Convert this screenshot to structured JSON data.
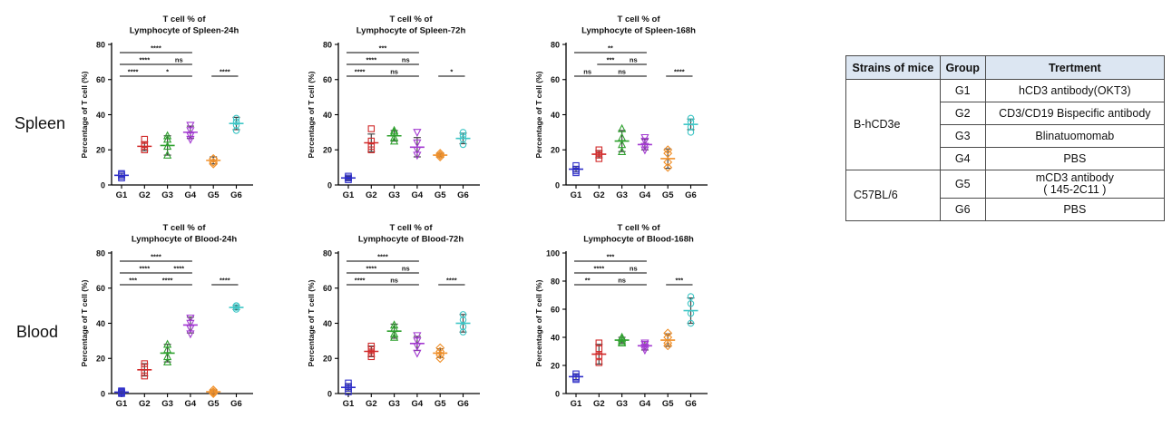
{
  "row_labels": {
    "spleen": "Spleen",
    "blood": "Blood"
  },
  "legend_table": {
    "headers": [
      "Strains of mice",
      "Group",
      "Trertment"
    ],
    "strains": [
      {
        "name": "B-hCD3e",
        "groups": [
          {
            "group": "G1",
            "treatment": "hCD3 antibody(OKT3)"
          },
          {
            "group": "G2",
            "treatment": "CD3/CD19 Bispecific antibody"
          },
          {
            "group": "G3",
            "treatment": "Blinatuomomab"
          },
          {
            "group": "G4",
            "treatment": "PBS"
          }
        ]
      },
      {
        "name": "C57BL/6",
        "groups": [
          {
            "group": "G5",
            "treatment": "mCD3 antibody",
            "treatment_line2": "( 145-2C11 )"
          },
          {
            "group": "G6",
            "treatment": "PBS"
          }
        ]
      }
    ]
  },
  "colors": {
    "G1": "#2d2dc8",
    "G2": "#d12a2a",
    "G3": "#2ea12e",
    "G4": "#a33ad1",
    "G5": "#f0902a",
    "G6": "#3ec6c6"
  },
  "chart_data": [
    {
      "type": "scatter",
      "title": [
        "T cell % of",
        "Lymphocyte of Spleen-24h"
      ],
      "ylabel": "Percentage of T cell (%)",
      "categories": [
        "G1",
        "G2",
        "G3",
        "G4",
        "G5",
        "G6"
      ],
      "ylim": [
        0,
        80
      ],
      "yticks": [
        0,
        20,
        40,
        60,
        80
      ],
      "markers": [
        "square",
        "square",
        "triangle",
        "triangle-down",
        "diamond",
        "circle"
      ],
      "points": [
        [
          4,
          5,
          6,
          6.5
        ],
        [
          20,
          22,
          23,
          26
        ],
        [
          17,
          22,
          26,
          28
        ],
        [
          26,
          28,
          31,
          34
        ],
        [
          12,
          13,
          15,
          15
        ],
        [
          31,
          34,
          36,
          38
        ]
      ],
      "mean": [
        5.5,
        22,
        22.5,
        30,
        14,
        35
      ],
      "sd": [
        1.2,
        2.5,
        5.5,
        3.5,
        2,
        3.5
      ],
      "significance": [
        {
          "from": 1,
          "to": 4,
          "label": "****"
        },
        {
          "from": 1,
          "to": 3,
          "label": "****"
        },
        {
          "from": 3,
          "to": 4,
          "label": "ns"
        },
        {
          "from": 1,
          "to": 2,
          "label": "****"
        },
        {
          "from": 2,
          "to": 4,
          "label": "*"
        },
        {
          "from": 5,
          "to": 6,
          "label": "****"
        }
      ]
    },
    {
      "type": "scatter",
      "title": [
        "T cell % of",
        "Lymphocyte of Spleen-72h"
      ],
      "ylabel": "Percentage of T cell (%)",
      "categories": [
        "G1",
        "G2",
        "G3",
        "G4",
        "G5",
        "G6"
      ],
      "ylim": [
        0,
        80
      ],
      "yticks": [
        0,
        20,
        40,
        60,
        80
      ],
      "markers": [
        "square",
        "square",
        "triangle",
        "triangle-down",
        "diamond",
        "circle"
      ],
      "points": [
        [
          3,
          4,
          4,
          5
        ],
        [
          20,
          22,
          25,
          32
        ],
        [
          25,
          27,
          30,
          31
        ],
        [
          17,
          20,
          24,
          30
        ],
        [
          16,
          17,
          17,
          18
        ],
        [
          23,
          26,
          28,
          30
        ]
      ],
      "mean": [
        4,
        24,
        28,
        21.5,
        17,
        26.5
      ],
      "sd": [
        1,
        5,
        3,
        5.5,
        1,
        3
      ],
      "significance": [
        {
          "from": 1,
          "to": 4,
          "label": "***"
        },
        {
          "from": 1,
          "to": 3,
          "label": "****"
        },
        {
          "from": 3,
          "to": 4,
          "label": "ns"
        },
        {
          "from": 1,
          "to": 2,
          "label": "****"
        },
        {
          "from": 2,
          "to": 4,
          "label": "ns"
        },
        {
          "from": 5,
          "to": 6,
          "label": "*"
        }
      ]
    },
    {
      "type": "scatter",
      "title": [
        "T cell % of",
        "Lymphocyte of Spleen-168h"
      ],
      "ylabel": "Percentage of T cell (%)",
      "categories": [
        "G1",
        "G2",
        "G3",
        "G4",
        "G5",
        "G6"
      ],
      "ylim": [
        0,
        80
      ],
      "yticks": [
        0,
        20,
        40,
        60,
        80
      ],
      "markers": [
        "square",
        "square",
        "triangle",
        "triangle-down",
        "diamond",
        "circle"
      ],
      "points": [
        [
          7,
          8,
          9,
          11
        ],
        [
          15,
          17,
          18,
          20
        ],
        [
          19,
          23,
          27,
          32
        ],
        [
          20,
          22,
          25,
          27
        ],
        [
          10,
          13,
          18,
          20
        ],
        [
          30,
          33,
          36,
          38
        ]
      ],
      "mean": [
        9,
        17.5,
        25,
        23,
        15,
        34.5
      ],
      "sd": [
        1.5,
        2,
        6,
        3,
        5.5,
        3
      ],
      "significance": [
        {
          "from": 1,
          "to": 4,
          "label": "**"
        },
        {
          "from": 2,
          "to": 3,
          "label": "***"
        },
        {
          "from": 3,
          "to": 4,
          "label": "ns"
        },
        {
          "from": 1,
          "to": 2,
          "label": "ns"
        },
        {
          "from": 2,
          "to": 4,
          "label": "ns"
        },
        {
          "from": 5,
          "to": 6,
          "label": "****"
        }
      ]
    },
    {
      "type": "scatter",
      "title": [
        "T cell % of",
        "Lymphocyte of Blood-24h"
      ],
      "ylabel": "Percentage of T cell (%)",
      "categories": [
        "G1",
        "G2",
        "G3",
        "G4",
        "G5",
        "G6"
      ],
      "ylim": [
        0,
        80
      ],
      "yticks": [
        0,
        20,
        40,
        60,
        80
      ],
      "markers": [
        "square",
        "square",
        "triangle",
        "triangle-down",
        "diamond",
        "circle"
      ],
      "points": [
        [
          0,
          0.5,
          1,
          1.5
        ],
        [
          10,
          12,
          15,
          17
        ],
        [
          18,
          21,
          25,
          28
        ],
        [
          34,
          37,
          40,
          43
        ],
        [
          0,
          0.5,
          1,
          2
        ],
        [
          48,
          49,
          50,
          50
        ]
      ],
      "mean": [
        0.8,
        13.5,
        23,
        39,
        1,
        49
      ],
      "sd": [
        0.6,
        3.5,
        5,
        4.5,
        1,
        1.2
      ],
      "significance": [
        {
          "from": 1,
          "to": 4,
          "label": "****"
        },
        {
          "from": 1,
          "to": 3,
          "label": "****"
        },
        {
          "from": 3,
          "to": 4,
          "label": "****"
        },
        {
          "from": 1,
          "to": 2,
          "label": "***"
        },
        {
          "from": 2,
          "to": 4,
          "label": "****"
        },
        {
          "from": 5,
          "to": 6,
          "label": "****"
        }
      ]
    },
    {
      "type": "scatter",
      "title": [
        "T cell % of",
        "Lymphocyte of Blood-72h"
      ],
      "ylabel": "Percentage of T cell (%)",
      "categories": [
        "G1",
        "G2",
        "G3",
        "G4",
        "G5",
        "G6"
      ],
      "ylim": [
        0,
        80
      ],
      "yticks": [
        0,
        20,
        40,
        60,
        80
      ],
      "markers": [
        "square",
        "square",
        "triangle",
        "triangle-down",
        "diamond",
        "circle"
      ],
      "points": [
        [
          1,
          3,
          4,
          6
        ],
        [
          21,
          23,
          25,
          27
        ],
        [
          32,
          34,
          37,
          39
        ],
        [
          23,
          27,
          30,
          33
        ],
        [
          20,
          22,
          24,
          26
        ],
        [
          35,
          38,
          42,
          45
        ]
      ],
      "mean": [
        3.5,
        24,
        35.5,
        28.5,
        23,
        40
      ],
      "sd": [
        2,
        3,
        4,
        4,
        2.5,
        5
      ],
      "significance": [
        {
          "from": 1,
          "to": 4,
          "label": "****"
        },
        {
          "from": 1,
          "to": 3,
          "label": "****"
        },
        {
          "from": 3,
          "to": 4,
          "label": "ns"
        },
        {
          "from": 1,
          "to": 2,
          "label": "****"
        },
        {
          "from": 2,
          "to": 4,
          "label": "ns"
        },
        {
          "from": 5,
          "to": 6,
          "label": "****"
        }
      ]
    },
    {
      "type": "scatter",
      "title": [
        "T cell % of",
        "Lymphocyte of Blood-168h"
      ],
      "ylabel": "Percentage of T cell (%)",
      "categories": [
        "G1",
        "G2",
        "G3",
        "G4",
        "G5",
        "G6"
      ],
      "ylim": [
        0,
        100
      ],
      "yticks": [
        0,
        20,
        40,
        60,
        80,
        100
      ],
      "markers": [
        "square",
        "square",
        "triangle",
        "triangle-down",
        "diamond",
        "circle"
      ],
      "points": [
        [
          10,
          11,
          12,
          14
        ],
        [
          22,
          27,
          32,
          36
        ],
        [
          36,
          37,
          39,
          40
        ],
        [
          31,
          33,
          35,
          36
        ],
        [
          34,
          36,
          40,
          43
        ],
        [
          50,
          57,
          64,
          69
        ]
      ],
      "mean": [
        12,
        28,
        38,
        34,
        38,
        59
      ],
      "sd": [
        2,
        7,
        2,
        3,
        4.5,
        9
      ],
      "significance": [
        {
          "from": 1,
          "to": 4,
          "label": "***"
        },
        {
          "from": 1,
          "to": 3,
          "label": "****"
        },
        {
          "from": 3,
          "to": 4,
          "label": "ns"
        },
        {
          "from": 1,
          "to": 2,
          "label": "**"
        },
        {
          "from": 2,
          "to": 4,
          "label": "ns"
        },
        {
          "from": 5,
          "to": 6,
          "label": "***"
        }
      ]
    }
  ]
}
